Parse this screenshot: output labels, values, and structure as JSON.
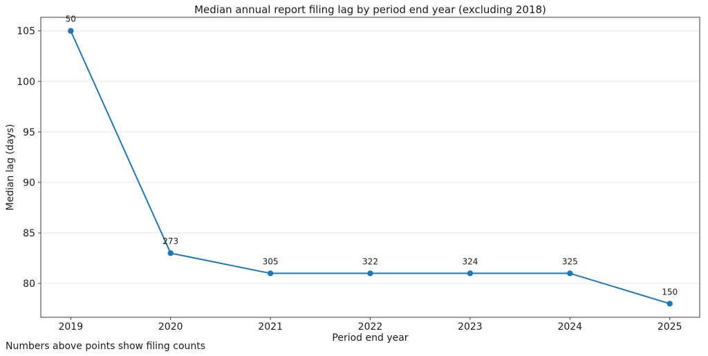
{
  "chart_data": {
    "type": "line",
    "title": "Median annual report filing lag by period end year (excluding 2018)",
    "xlabel": "Period end year",
    "ylabel": "Median lag (days)",
    "footnote": "Numbers above points show filing counts",
    "x": [
      2019,
      2020,
      2021,
      2022,
      2023,
      2024,
      2025
    ],
    "y": [
      105,
      83,
      81,
      81,
      81,
      81,
      78
    ],
    "point_labels": [
      "50",
      "273",
      "305",
      "322",
      "324",
      "325",
      "150"
    ],
    "x_ticks": [
      2019,
      2020,
      2021,
      2022,
      2023,
      2024,
      2025
    ],
    "y_ticks": [
      80,
      85,
      90,
      95,
      100,
      105
    ],
    "xlim": [
      2018.7,
      2025.3
    ],
    "ylim": [
      76.65,
      106.35
    ],
    "legend": "none",
    "grid": "horizontal",
    "line_color": "#1f77b4",
    "marker_color": "#1f77b4",
    "grid_color": "#e7e7e7",
    "frame_color": "#3a3a3a",
    "text_color": "#1a1a1a",
    "background_color": "#ffffff"
  }
}
